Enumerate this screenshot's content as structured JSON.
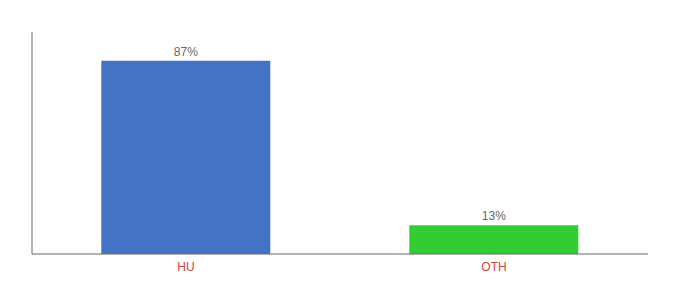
{
  "chart_data": {
    "type": "bar",
    "categories": [
      "HU",
      "OTH"
    ],
    "values": [
      87,
      13
    ],
    "value_labels": [
      "87%",
      "13%"
    ],
    "data_labels": true,
    "colors": [
      "#4472c4",
      "#33cc33"
    ],
    "ylim": [
      0,
      100
    ],
    "tick_labels": "x",
    "grid": false
  }
}
